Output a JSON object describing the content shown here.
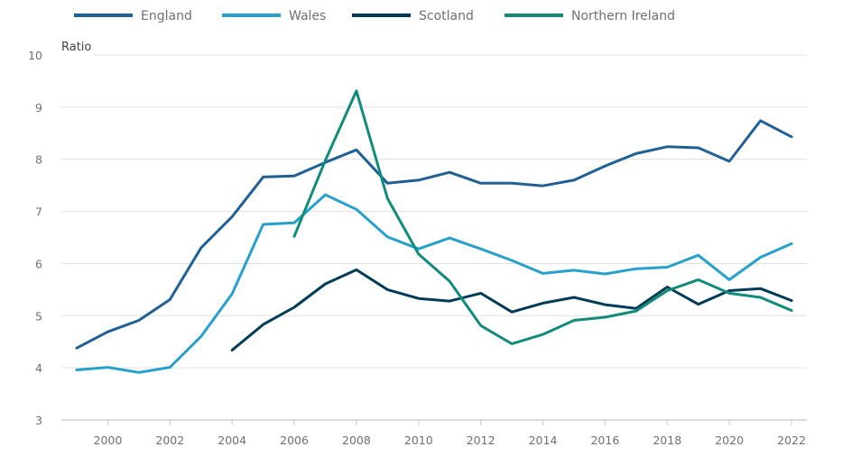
{
  "chart_data": {
    "type": "line",
    "title": "",
    "xlabel": "",
    "ylabel": "Ratio",
    "xlim": [
      1999,
      2022
    ],
    "ylim": [
      3,
      10
    ],
    "yticks": [
      3,
      4,
      5,
      6,
      7,
      8,
      9,
      10
    ],
    "xticks": [
      2000,
      2002,
      2004,
      2006,
      2008,
      2010,
      2012,
      2014,
      2016,
      2018,
      2020,
      2022
    ],
    "grid": true,
    "legend_position": "top",
    "x": [
      1999,
      2000,
      2001,
      2002,
      2003,
      2004,
      2005,
      2006,
      2007,
      2008,
      2009,
      2010,
      2011,
      2012,
      2013,
      2014,
      2015,
      2016,
      2017,
      2018,
      2019,
      2020,
      2021,
      2022
    ],
    "series": [
      {
        "name": "England",
        "color": "#206095",
        "values": [
          4.38,
          4.69,
          4.91,
          5.31,
          6.3,
          6.9,
          7.66,
          7.68,
          7.94,
          8.18,
          7.54,
          7.6,
          7.75,
          7.54,
          7.54,
          7.49,
          7.6,
          7.87,
          8.11,
          8.24,
          8.22,
          7.96,
          8.74,
          8.43
        ]
      },
      {
        "name": "Wales",
        "color": "#27a0cc",
        "values": [
          3.96,
          4.01,
          3.91,
          4.01,
          4.6,
          5.42,
          6.75,
          6.78,
          7.32,
          7.04,
          6.51,
          6.28,
          6.49,
          6.28,
          6.06,
          5.81,
          5.87,
          5.8,
          5.9,
          5.93,
          6.16,
          5.69,
          6.12,
          6.38
        ]
      },
      {
        "name": "Scotland",
        "color": "#003c57",
        "values": [
          null,
          null,
          null,
          null,
          null,
          4.34,
          4.83,
          5.16,
          5.61,
          5.88,
          5.5,
          5.33,
          5.28,
          5.43,
          5.07,
          5.24,
          5.35,
          5.21,
          5.14,
          5.55,
          5.22,
          5.48,
          5.52,
          5.29
        ]
      },
      {
        "name": "Northern Ireland",
        "color": "#118c7b",
        "values": [
          null,
          null,
          null,
          null,
          null,
          null,
          null,
          6.52,
          7.98,
          9.31,
          7.25,
          6.18,
          5.66,
          4.81,
          4.46,
          4.64,
          4.91,
          4.97,
          5.09,
          5.48,
          5.69,
          5.43,
          5.35,
          5.1
        ]
      }
    ]
  }
}
